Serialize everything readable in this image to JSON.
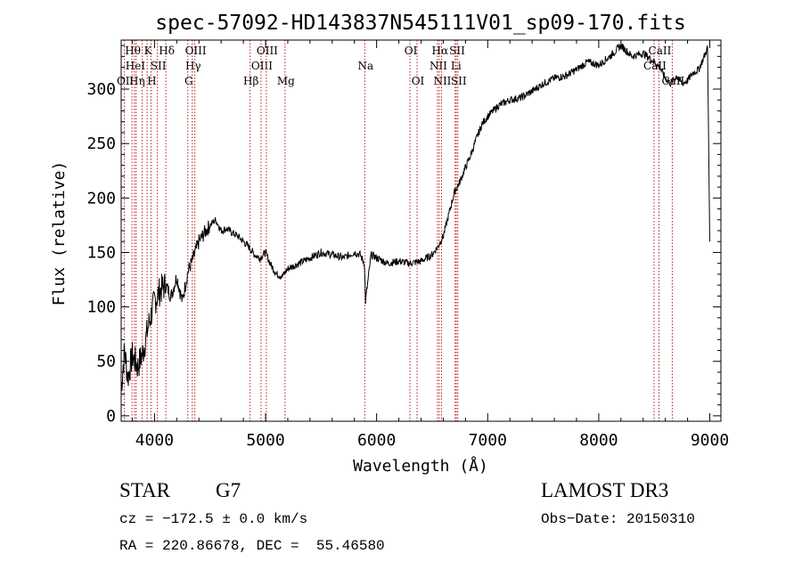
{
  "chart_data": {
    "type": "line",
    "title": "spec-57092-HD143837N545111V01_sp09-170.fits",
    "xlabel": "Wavelength (Å)",
    "ylabel": "Flux (relative)",
    "xlim": [
      3700,
      9100
    ],
    "ylim": [
      -5,
      345
    ],
    "x_ticks": [
      4000,
      5000,
      6000,
      7000,
      8000,
      9000
    ],
    "y_ticks": [
      0,
      50,
      100,
      150,
      200,
      250,
      300
    ],
    "grid": false,
    "series": [
      {
        "color": "#000000",
        "x": [
          3700,
          3730,
          3760,
          3800,
          3850,
          3900,
          3950,
          4000,
          4050,
          4100,
          4150,
          4200,
          4250,
          4300,
          4350,
          4400,
          4450,
          4500,
          4550,
          4600,
          4650,
          4700,
          4750,
          4800,
          4850,
          4900,
          4950,
          5000,
          5050,
          5100,
          5150,
          5200,
          5300,
          5400,
          5500,
          5600,
          5700,
          5800,
          5850,
          5890,
          5900,
          5950,
          6000,
          6100,
          6200,
          6300,
          6400,
          6500,
          6550,
          6600,
          6650,
          6700,
          6750,
          6800,
          6850,
          6900,
          6950,
          7000,
          7100,
          7200,
          7300,
          7400,
          7500,
          7600,
          7700,
          7800,
          7900,
          8000,
          8100,
          8150,
          8200,
          8250,
          8300,
          8400,
          8500,
          8550,
          8600,
          8650,
          8700,
          8750,
          8800,
          8850,
          8900,
          8950,
          8980,
          9000
        ],
        "y": [
          25,
          60,
          35,
          55,
          45,
          60,
          85,
          105,
          115,
          120,
          110,
          128,
          105,
          132,
          145,
          160,
          168,
          175,
          180,
          170,
          172,
          168,
          165,
          160,
          155,
          148,
          145,
          150,
          138,
          130,
          128,
          135,
          140,
          145,
          150,
          148,
          145,
          150,
          148,
          140,
          105,
          148,
          145,
          140,
          142,
          140,
          142,
          148,
          155,
          165,
          185,
          205,
          215,
          228,
          240,
          255,
          268,
          275,
          285,
          290,
          292,
          298,
          305,
          310,
          312,
          318,
          325,
          322,
          330,
          335,
          340,
          335,
          330,
          333,
          325,
          320,
          310,
          305,
          312,
          305,
          308,
          315,
          318,
          330,
          338,
          160
        ]
      }
    ],
    "lines": [
      {
        "x": 3729,
        "label": "OII",
        "row": 2
      },
      {
        "x": 3797,
        "label": "Hθ",
        "row": 0
      },
      {
        "x": 3820,
        "label": "HeI",
        "row": 1
      },
      {
        "x": 3835,
        "label": "Hη",
        "row": 2
      },
      {
        "x": 3889,
        "label": "",
        "row": 2
      },
      {
        "x": 3934,
        "label": "K",
        "row": 0
      },
      {
        "x": 3968,
        "label": "H",
        "row": 2
      },
      {
        "x": 4026,
        "label": "SII",
        "row": 1
      },
      {
        "x": 4102,
        "label": "Hδ",
        "row": 0
      },
      {
        "x": 4300,
        "label": "G",
        "row": 2
      },
      {
        "x": 4340,
        "label": "Hγ",
        "row": 1
      },
      {
        "x": 4363,
        "label": "OIII",
        "row": 0
      },
      {
        "x": 4861,
        "label": "Hβ",
        "row": 2
      },
      {
        "x": 4959,
        "label": "OIII",
        "row": 1
      },
      {
        "x": 5007,
        "label": "OIII",
        "row": 0
      },
      {
        "x": 5175,
        "label": "Mg",
        "row": 2
      },
      {
        "x": 5893,
        "label": "Na",
        "row": 1
      },
      {
        "x": 6300,
        "label": "OI",
        "row": 0
      },
      {
        "x": 6364,
        "label": "OI",
        "row": 2
      },
      {
        "x": 6548,
        "label": "NII",
        "row": 1
      },
      {
        "x": 6563,
        "label": "Hα",
        "row": 0
      },
      {
        "x": 6584,
        "label": "NII",
        "row": 2
      },
      {
        "x": 6707,
        "label": "Li",
        "row": 1
      },
      {
        "x": 6717,
        "label": "SII",
        "row": 0
      },
      {
        "x": 6731,
        "label": "SII",
        "row": 2
      },
      {
        "x": 8498,
        "label": "CaII",
        "row": 1
      },
      {
        "x": 8542,
        "label": "CaII",
        "row": 0
      },
      {
        "x": 8662,
        "label": "CaII",
        "row": 2
      }
    ]
  },
  "info": {
    "object_class": "STAR",
    "subclass": "G7",
    "survey": "LAMOST DR3",
    "redshift": "cz = −172.5 ± 0.0 km/s",
    "obs_date": "Obs−Date: 20150310",
    "coords": "RA = 220.86678, DEC =  55.46580"
  }
}
